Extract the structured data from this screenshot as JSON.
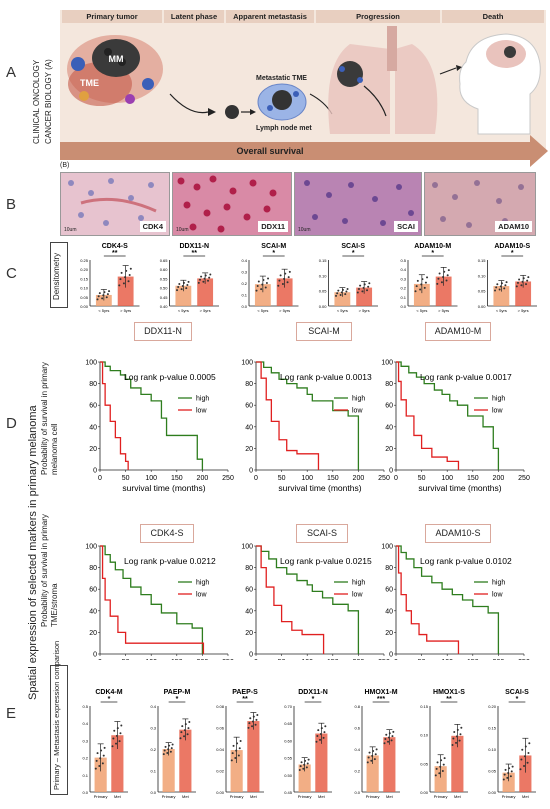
{
  "panel_letters": [
    "A",
    "B",
    "C",
    "D",
    "E"
  ],
  "sidebar": {
    "left_vertical": "Spatial expression of selected markers in primary melanoma",
    "panel_a_vertical_1": "CLINICAL ONCOLOGY",
    "panel_a_vertical_2": "CANCER BIOLOGY (A)"
  },
  "panel_a": {
    "stages": [
      "Primary tumor",
      "Latent phase",
      "Apparent metastasis",
      "Progression",
      "Death"
    ],
    "labels": {
      "mm": "MM",
      "tme": "TME",
      "metastatic": "Metastatic TME",
      "lymph": "Lymph node met"
    },
    "arrow_label": "Overall survival"
  },
  "panel_b": {
    "tag": "(B)",
    "images": [
      {
        "label": "CDK4",
        "color": "#e7c3cf",
        "scale": "10um"
      },
      {
        "label": "DDX11",
        "color": "#d98aa6",
        "scale": "10um"
      },
      {
        "label": "SCAI",
        "color": "#b984b3",
        "scale": "10um"
      },
      {
        "label": "ADAM10",
        "color": "#d4a9b0",
        "scale": ""
      }
    ]
  },
  "panel_c": {
    "side_label": "Densitometry",
    "xcats": [
      "< 5yrs",
      "> 5yrs"
    ],
    "charts": [
      {
        "title": "CDK4-S",
        "sig": "**",
        "yticks": [
          "0.00",
          "0.05",
          "0.10",
          "0.15",
          "0.20",
          "0.25"
        ],
        "ymax": 0.25,
        "values": [
          0.06,
          0.16
        ],
        "errs": [
          0.03,
          0.06
        ]
      },
      {
        "title": "DDX11-N",
        "sig": "**",
        "yticks": [
          "0.40",
          "0.45",
          "0.50",
          "0.55",
          "0.60",
          "0.65"
        ],
        "ymin": 0.4,
        "ymax": 0.65,
        "values": [
          0.51,
          0.55
        ],
        "errs": [
          0.03,
          0.03
        ]
      },
      {
        "title": "SCAI-M",
        "sig": "*",
        "yticks": [
          "0.0",
          "0.1",
          "0.2",
          "0.3",
          "0.4"
        ],
        "ymax": 0.4,
        "values": [
          0.19,
          0.24
        ],
        "errs": [
          0.07,
          0.08
        ]
      },
      {
        "title": "SCAI-S",
        "sig": "*",
        "yticks": [
          "0.00",
          "0.05",
          "0.10",
          "0.15"
        ],
        "ymax": 0.15,
        "values": [
          0.045,
          0.06
        ],
        "errs": [
          0.015,
          0.02
        ]
      },
      {
        "title": "ADAM10-M",
        "sig": "*",
        "yticks": [
          "0.0",
          "0.1",
          "0.2",
          "0.3",
          "0.4",
          "0.5"
        ],
        "ymax": 0.5,
        "values": [
          0.24,
          0.32
        ],
        "errs": [
          0.1,
          0.1
        ]
      },
      {
        "title": "ADAM10-S",
        "sig": "*",
        "yticks": [
          "0.00",
          "0.05",
          "0.10",
          "0.15"
        ],
        "ymax": 0.15,
        "values": [
          0.065,
          0.08
        ],
        "errs": [
          0.018,
          0.02
        ]
      }
    ]
  },
  "panel_d": {
    "ylabel_top": "Probability of survival in primary melanoma cell",
    "ylabel_bottom": "Probability of survival in primary TME/stroma",
    "xlabel": "survival time (months)",
    "xticks": [
      "0",
      "50",
      "100",
      "150",
      "200",
      "250"
    ],
    "yticks": [
      "0",
      "20",
      "40",
      "60",
      "80",
      "100"
    ],
    "legend": [
      "high",
      "low"
    ],
    "colors": {
      "high": "#2e7d1e",
      "low": "#e02020"
    },
    "plots": [
      {
        "title": "DDX11-N",
        "pval": "Log rank p-value 0.0005"
      },
      {
        "title": "SCAI-M",
        "pval": "Log rank p-value 0.0013"
      },
      {
        "title": "ADAM10-M",
        "pval": "Log rank p-value 0.0017"
      },
      {
        "title": "CDK4-S",
        "pval": "Log rank p-value 0.0212"
      },
      {
        "title": "SCAI-S",
        "pval": "Log rank p-value 0.0215"
      },
      {
        "title": "ADAM10-S",
        "pval": "Log rank p-value 0.0102"
      }
    ]
  },
  "panel_e": {
    "side_label": "Primary – Metastasis expression comparison",
    "xcats": [
      "Primary",
      "Met"
    ],
    "charts": [
      {
        "title": "CDK4-M",
        "sig": "*",
        "yticks": [
          "0.0",
          "0.1",
          "0.2",
          "0.3",
          "0.4",
          "0.5"
        ],
        "ymax": 0.5,
        "values": [
          0.2,
          0.33
        ],
        "errs": [
          0.08,
          0.08
        ]
      },
      {
        "title": "PAEP-M",
        "sig": "*",
        "yticks": [
          "0.0",
          "0.1",
          "0.2",
          "0.3",
          "0.4"
        ],
        "ymax": 0.4,
        "values": [
          0.2,
          0.29
        ],
        "errs": [
          0.03,
          0.05
        ]
      },
      {
        "title": "PAEP-S",
        "sig": "**",
        "yticks": [
          "0.00",
          "0.02",
          "0.04",
          "0.06",
          "0.08"
        ],
        "ymax": 0.08,
        "values": [
          0.039,
          0.066
        ],
        "errs": [
          0.012,
          0.008
        ]
      },
      {
        "title": "DDX11-N",
        "sig": "*",
        "yticks": [
          "0.45",
          "0.50",
          "0.55",
          "0.60",
          "0.65",
          "0.70"
        ],
        "ymin": 0.45,
        "ymax": 0.7,
        "values": [
          0.53,
          0.62
        ],
        "errs": [
          0.02,
          0.03
        ]
      },
      {
        "title": "HMOX1-M",
        "sig": "***",
        "yticks": [
          "0.0",
          "0.2",
          "0.4",
          "0.6",
          "0.8"
        ],
        "ymax": 0.8,
        "values": [
          0.34,
          0.51
        ],
        "errs": [
          0.08,
          0.07
        ]
      },
      {
        "title": "HMOX1-S",
        "sig": "**",
        "yticks": [
          "0.00",
          "0.05",
          "0.10",
          "0.15"
        ],
        "ymax": 0.15,
        "values": [
          0.045,
          0.098
        ],
        "errs": [
          0.02,
          0.02
        ]
      },
      {
        "title": "SCAI-S",
        "sig": "*",
        "yticks": [
          "0.00",
          "0.05",
          "0.10",
          "0.15",
          "0.20"
        ],
        "ymax": 0.2,
        "values": [
          0.045,
          0.085
        ],
        "errs": [
          0.02,
          0.04
        ]
      }
    ]
  }
}
